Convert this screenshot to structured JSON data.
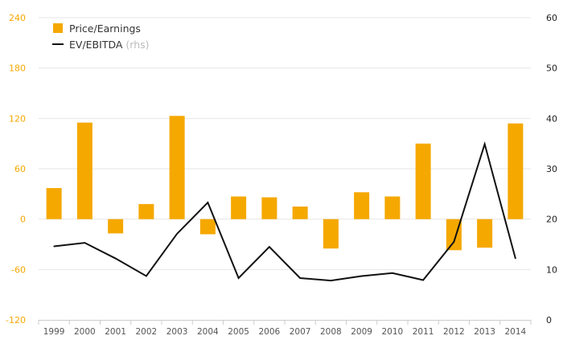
{
  "chart_data": {
    "type": "bar",
    "categories": [
      "1999",
      "2000",
      "2001",
      "2002",
      "2003",
      "2004",
      "2005",
      "2006",
      "2007",
      "2008",
      "2009",
      "2010",
      "2011",
      "2012",
      "2013",
      "2014"
    ],
    "series": [
      {
        "name": "Price/Earnings",
        "type": "bar",
        "axis": "left",
        "color": "#f5a800",
        "values": [
          37,
          115,
          -17,
          18,
          123,
          -18,
          27,
          26,
          15,
          -35,
          32,
          27,
          90,
          -37,
          -34,
          114
        ]
      },
      {
        "name": "EV/EBITDA",
        "type": "line",
        "axis": "right",
        "color": "#111111",
        "values": [
          14.6,
          15.3,
          12.2,
          8.7,
          17.1,
          23.3,
          8.3,
          14.5,
          8.3,
          7.8,
          8.7,
          9.3,
          7.9,
          15.5,
          34.9,
          12.2
        ]
      }
    ],
    "legend": {
      "items": [
        {
          "label": "Price/Earnings",
          "note": ""
        },
        {
          "label": "EV/EBITDA",
          "note": "(rhs)"
        }
      ],
      "position": "top-left"
    },
    "left_axis": {
      "ylim": [
        -120,
        240
      ],
      "ticks": [
        "240",
        "180",
        "120",
        "60",
        "0",
        "-60",
        "-120"
      ]
    },
    "right_axis": {
      "ylim": [
        0,
        60
      ],
      "ticks": [
        "60",
        "50",
        "40",
        "30",
        "20",
        "10",
        "0"
      ]
    },
    "grid": true,
    "title": "",
    "xlabel": "",
    "ylabel": ""
  }
}
